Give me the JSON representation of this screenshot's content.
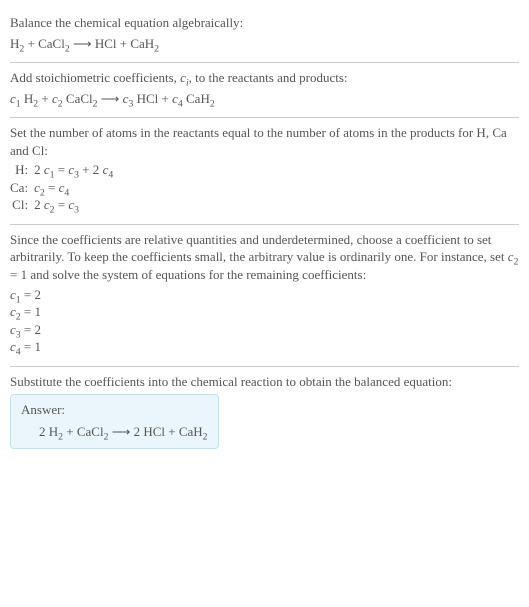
{
  "section1": {
    "title": "Balance the chemical equation algebraically:",
    "eq_parts": [
      "H",
      "2",
      " + CaCl",
      "2",
      "  ⟶  HCl + CaH",
      "2"
    ]
  },
  "section2": {
    "line1_a": "Add stoichiometric coefficients, ",
    "line1_c": "c",
    "line1_ci": "i",
    "line1_b": ", to the reactants and products:",
    "eq": {
      "c1": "c",
      "s1": "1",
      "p1": " H",
      "hs": "2",
      "plus": " + ",
      "c2": "c",
      "s2": "2",
      "p2": " CaCl",
      "cls": "2",
      "arr": "  ⟶  ",
      "c3": "c",
      "s3": "3",
      "p3": " HCl + ",
      "c4": "c",
      "s4": "4",
      "p4": " CaH",
      "cah": "2"
    }
  },
  "section3": {
    "intro": "Set the number of atoms in the reactants equal to the number of atoms in the products for H, Ca and Cl:",
    "rows": [
      {
        "label": "H:",
        "lhs_a": "2 ",
        "lhs_c": "c",
        "lhs_s": "1",
        "eq": " = ",
        "rhs_c": "c",
        "rhs_s": "3",
        "plus": " + 2 ",
        "rhs2_c": "c",
        "rhs2_s": "4"
      },
      {
        "label": "Ca:",
        "lhs_a": "",
        "lhs_c": "c",
        "lhs_s": "2",
        "eq": " = ",
        "rhs_c": "c",
        "rhs_s": "4",
        "plus": "",
        "rhs2_c": "",
        "rhs2_s": ""
      },
      {
        "label": "Cl:",
        "lhs_a": "2 ",
        "lhs_c": "c",
        "lhs_s": "2",
        "eq": " = ",
        "rhs_c": "c",
        "rhs_s": "3",
        "plus": "",
        "rhs2_c": "",
        "rhs2_s": ""
      }
    ]
  },
  "section4": {
    "intro_a": "Since the coefficients are relative quantities and underdetermined, choose a coefficient to set arbitrarily. To keep the coefficients small, the arbitrary value is ordinarily one. For instance, set ",
    "intro_c": "c",
    "intro_cs": "2",
    "intro_b": " = 1 and solve the system of equations for the remaining coefficients:",
    "coeffs": [
      {
        "c": "c",
        "s": "1",
        "rest": " = 2"
      },
      {
        "c": "c",
        "s": "2",
        "rest": " = 1"
      },
      {
        "c": "c",
        "s": "3",
        "rest": " = 2"
      },
      {
        "c": "c",
        "s": "4",
        "rest": " = 1"
      }
    ]
  },
  "section5": {
    "intro": "Substitute the coefficients into the chemical reaction to obtain the balanced equation:",
    "answer_label": "Answer:",
    "answer_eq": [
      "2 H",
      "2",
      " + CaCl",
      "2",
      "  ⟶  2 HCl + CaH",
      "2"
    ],
    "box_bg": "#eaf6fb",
    "box_border": "#bfe3ef"
  }
}
